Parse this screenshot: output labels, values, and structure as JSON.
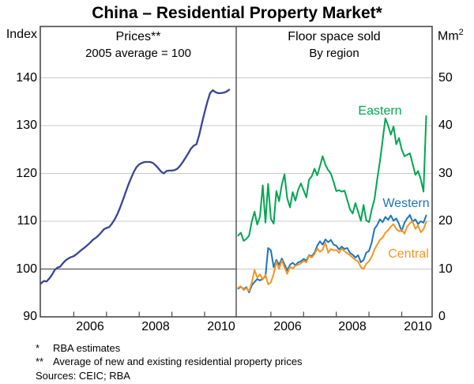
{
  "title": "China – Residential Property Market*",
  "axes": {
    "left_unit": "Index",
    "right_unit_base": "Mm",
    "right_unit_sup": "2"
  },
  "footnotes": [
    {
      "marker": "*",
      "text": "RBA estimates"
    },
    {
      "marker": "**",
      "text": "Average of new and existing residential property prices"
    }
  ],
  "sources": "Sources: CEIC; RBA",
  "colors": {
    "prices_line": "#3a4496",
    "eastern": "#00a651",
    "western": "#1b75bc",
    "central": "#f7941e",
    "grid": "#c9c9c9",
    "refline": "#555555",
    "frame": "#4a4a4a"
  },
  "chart_data": [
    {
      "type": "line",
      "panel": "left",
      "title": "Prices**",
      "subtitle": "2005 average = 100",
      "x_start": "2005-01",
      "x_end": "2010-10",
      "frequency": "monthly",
      "ylim": [
        90,
        151
      ],
      "yticks": [
        90,
        100,
        110,
        120,
        130,
        140
      ],
      "gridlines": [
        110,
        120,
        130,
        140
      ],
      "refline": 100,
      "year_ticks": [
        2006,
        2007,
        2008,
        2009,
        2010
      ],
      "x_labels": [
        {
          "text": "2006",
          "year": 2006
        },
        {
          "text": "2008",
          "year": 2008
        },
        {
          "text": "2010",
          "year": 2010
        }
      ],
      "legend_position": "none",
      "grid": true,
      "series": [
        {
          "name": "Prices",
          "color_key": "prices_line",
          "width": 2.3,
          "values": [
            97.0,
            97.5,
            97.4,
            98.0,
            98.8,
            99.8,
            100.3,
            100.5,
            101.2,
            101.8,
            102.2,
            102.5,
            102.7,
            103.1,
            103.6,
            104.1,
            104.5,
            105.0,
            105.5,
            106.1,
            106.5,
            107.0,
            107.6,
            108.3,
            108.6,
            108.8,
            109.5,
            110.4,
            111.5,
            112.9,
            114.4,
            116.0,
            117.6,
            119.0,
            120.3,
            121.3,
            121.9,
            122.2,
            122.4,
            122.4,
            122.4,
            122.2,
            121.7,
            121.1,
            120.4,
            120.0,
            120.5,
            120.6,
            120.6,
            120.7,
            121.0,
            121.6,
            122.4,
            123.3,
            124.2,
            125.2,
            125.8,
            126.1,
            128.0,
            130.5,
            132.8,
            135.0,
            136.8,
            137.4,
            137.0,
            136.8,
            136.8,
            136.9,
            137.1,
            137.5
          ]
        }
      ]
    },
    {
      "type": "line",
      "panel": "right",
      "title": "Floor space sold",
      "subtitle": "By region",
      "x_start": "2005-01",
      "x_end": "2010-10",
      "frequency": "monthly",
      "ylim": [
        0,
        61
      ],
      "yticks": [
        0,
        10,
        20,
        30,
        40,
        50
      ],
      "gridlines": [
        10,
        20,
        30,
        40,
        50
      ],
      "year_ticks": [
        2006,
        2007,
        2008,
        2009,
        2010
      ],
      "x_labels": [
        {
          "text": "2006",
          "year": 2006
        },
        {
          "text": "2008",
          "year": 2008
        },
        {
          "text": "2010",
          "year": 2010
        }
      ],
      "legend_position": "inline-labels",
      "grid": true,
      "series": [
        {
          "name": "Eastern",
          "color_key": "eastern",
          "width": 2.0,
          "label": {
            "text": "Eastern",
            "x": 481,
            "y": 141
          },
          "values": [
            17.0,
            17.6,
            15.9,
            16.3,
            17.0,
            20.0,
            22.0,
            19.3,
            21.0,
            27.5,
            19.7,
            27.8,
            20.5,
            19.5,
            26.3,
            24.2,
            27.6,
            29.8,
            24.8,
            22.9,
            26.1,
            24.3,
            26.6,
            27.9,
            26.5,
            25.0,
            28.7,
            29.4,
            31.0,
            29.6,
            31.5,
            33.6,
            31.8,
            30.7,
            30.0,
            28.2,
            26.3,
            26.5,
            26.2,
            26.4,
            24.5,
            22.5,
            21.6,
            23.8,
            22.0,
            20.1,
            23.4,
            20.2,
            19.8,
            22.5,
            24.6,
            28.8,
            32.5,
            37.0,
            41.5,
            40.0,
            38.1,
            39.8,
            36.1,
            37.4,
            35.0,
            33.6,
            33.9,
            34.2,
            32.0,
            29.7,
            30.5,
            28.8,
            26.2,
            42.0
          ]
        },
        {
          "name": "Western",
          "color_key": "western",
          "width": 2.0,
          "label": {
            "text": "Western",
            "x": 514,
            "y": 258
          },
          "values": [
            5.9,
            6.3,
            5.8,
            6.2,
            5.1,
            6.6,
            7.3,
            7.9,
            7.6,
            8.0,
            8.4,
            14.4,
            13.9,
            10.4,
            11.9,
            10.9,
            12.2,
            11.0,
            9.7,
            10.9,
            11.3,
            10.8,
            11.4,
            11.6,
            12.1,
            11.8,
            12.9,
            12.7,
            13.4,
            14.9,
            15.8,
            15.1,
            16.2,
            15.6,
            16.1,
            15.1,
            14.9,
            14.1,
            14.7,
            14.2,
            14.4,
            13.4,
            13.0,
            12.4,
            12.9,
            11.4,
            11.9,
            13.4,
            13.8,
            15.6,
            18.4,
            19.2,
            20.4,
            19.8,
            20.9,
            20.3,
            21.2,
            20.1,
            20.6,
            19.4,
            17.9,
            19.7,
            20.6,
            21.3,
            19.9,
            20.4,
            19.4,
            20.0,
            19.7,
            21.2
          ]
        },
        {
          "name": "Central",
          "color_key": "central",
          "width": 2.0,
          "label": {
            "text": "Central",
            "x": 517,
            "y": 322
          },
          "values": [
            6.1,
            6.4,
            5.6,
            6.0,
            5.4,
            7.2,
            9.8,
            8.2,
            8.9,
            7.8,
            8.8,
            6.8,
            7.2,
            9.0,
            11.5,
            10.0,
            11.8,
            10.4,
            9.0,
            10.5,
            10.1,
            10.7,
            10.9,
            11.2,
            11.7,
            11.4,
            12.8,
            12.4,
            13.1,
            14.3,
            13.6,
            14.1,
            15.5,
            13.4,
            14.2,
            13.9,
            14.0,
            13.4,
            14.3,
            13.7,
            13.3,
            12.9,
            12.4,
            11.9,
            11.6,
            10.4,
            10.0,
            11.1,
            11.6,
            12.6,
            14.1,
            15.1,
            16.1,
            16.6,
            17.6,
            18.1,
            18.9,
            19.4,
            18.4,
            17.9,
            18.2,
            17.4,
            18.9,
            19.6,
            19.9,
            18.4,
            19.1,
            17.7,
            18.3,
            19.9
          ]
        }
      ]
    }
  ]
}
